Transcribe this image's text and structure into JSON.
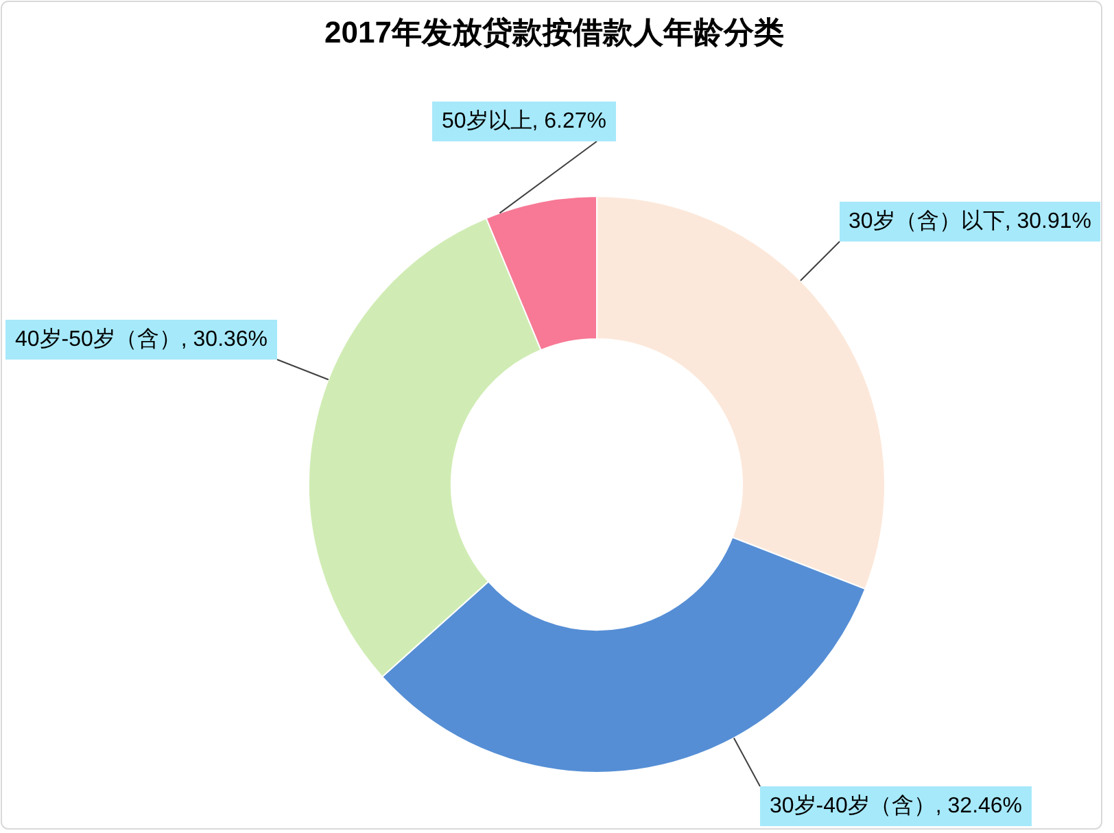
{
  "chart_data": {
    "type": "donut",
    "title": "2017年发放贷款按借款人年龄分类",
    "categories": [
      "30岁（含）以下",
      "30岁-40岁（含）",
      "40岁-50岁（含）",
      "50岁以上"
    ],
    "values": [
      30.91,
      32.46,
      30.36,
      6.27
    ],
    "colors": [
      "#fce8da",
      "#558ed5",
      "#d0ecb4",
      "#f77995"
    ],
    "value_labels": [
      "30.91%",
      "32.46%",
      "30.36%",
      "6.27%"
    ]
  }
}
